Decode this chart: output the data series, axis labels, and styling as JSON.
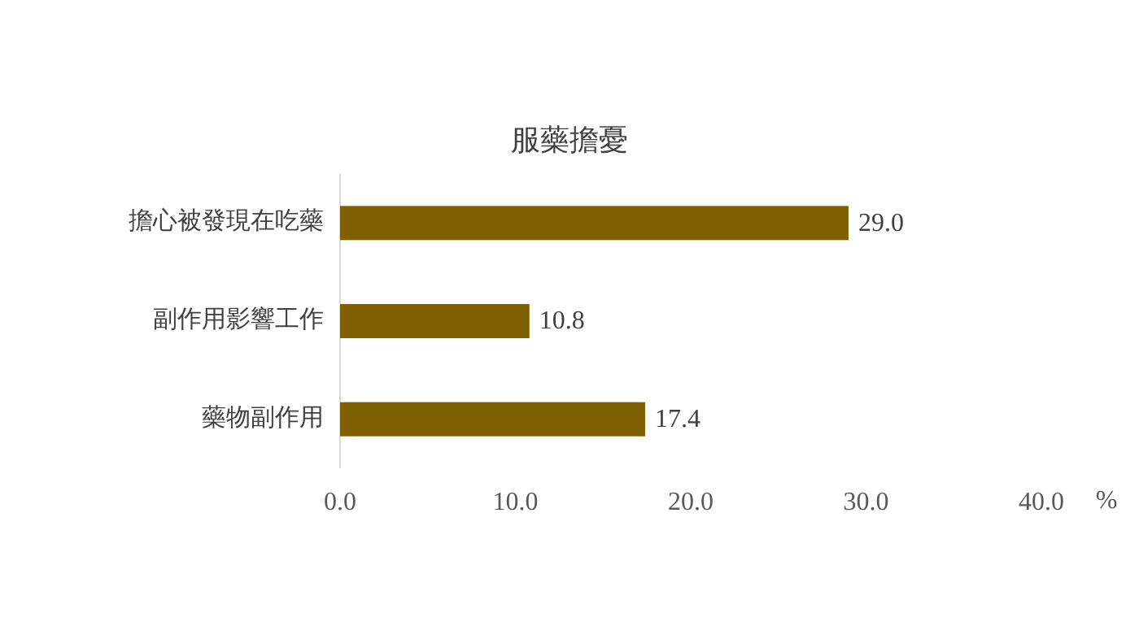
{
  "chart_data": {
    "type": "bar",
    "orientation": "horizontal",
    "title": "服藥擔憂",
    "xlabel": "%",
    "categories": [
      "擔心被發現在吃藥",
      "副作用影響工作",
      "藥物副作用"
    ],
    "values": [
      29.0,
      10.8,
      17.4
    ],
    "value_labels": [
      "29.0",
      "10.8",
      "17.4"
    ],
    "color": "#7f6000",
    "xlim": [
      0,
      40
    ],
    "xticks": [
      {
        "value": 0,
        "label": "0.0"
      },
      {
        "value": 10,
        "label": "10.0"
      },
      {
        "value": 20,
        "label": "20.0"
      },
      {
        "value": 30,
        "label": "30.0"
      },
      {
        "value": 40,
        "label": "40.0"
      }
    ]
  }
}
